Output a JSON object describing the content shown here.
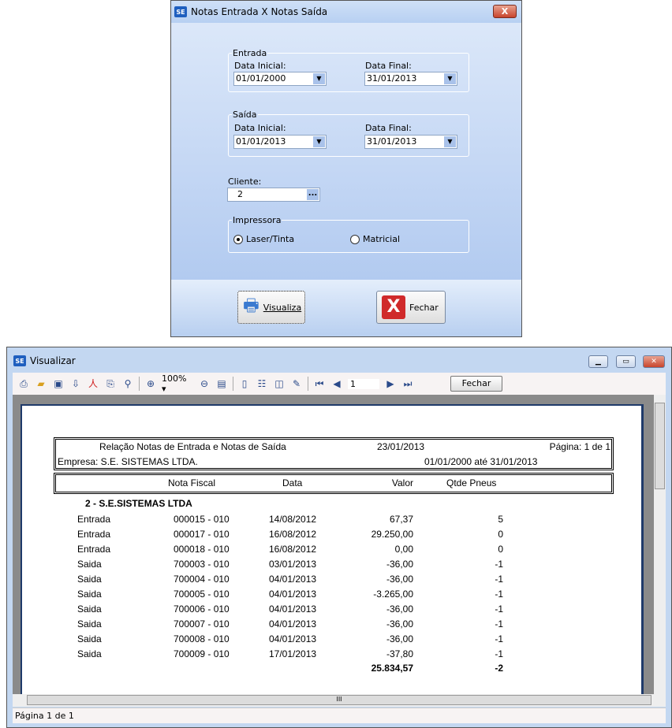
{
  "dialog": {
    "title": "Notas Entrada X Notas Saída",
    "close": "X",
    "entrada": {
      "legend": "Entrada",
      "data_inicial_label": "Data Inicial:",
      "data_inicial": "01/01/2000",
      "data_final_label": "Data Final:",
      "data_final": "31/01/2013"
    },
    "saida": {
      "legend": "Saída",
      "data_inicial_label": "Data Inicial:",
      "data_inicial": "01/01/2013",
      "data_final_label": "Data Final:",
      "data_final": "31/01/2013"
    },
    "cliente": {
      "label": "Cliente:",
      "value": "2",
      "lookup": "..."
    },
    "impressora": {
      "legend": "Impressora",
      "options": [
        "Laser/Tinta",
        "Matricial"
      ],
      "selected": "Laser/Tinta"
    },
    "visualiza_label": "Visualiza",
    "fechar_label": "Fechar"
  },
  "viewer": {
    "title": "Visualizar",
    "zoom": "100%",
    "page_input": "1",
    "fechar_label": "Fechar",
    "status": "Página 1 de 1",
    "icons": [
      "print-icon",
      "open-icon",
      "save-icon",
      "export-icon",
      "pdf-icon",
      "attach-icon",
      "find-icon",
      "zoom-in-icon",
      "zoom-out-icon",
      "page-width-icon",
      "single-page-icon",
      "multi-page-icon",
      "book-icon",
      "edit-icon",
      "first-page-icon",
      "prev-page-icon",
      "next-page-icon",
      "last-page-icon"
    ]
  },
  "report": {
    "title": "Relação Notas de Entrada e Notas de Saída",
    "date": "23/01/2013",
    "page": "Página: 1 de 1",
    "empresa": "Empresa: S.E. SISTEMAS LTDA.",
    "period": "01/01/2000 até 31/01/2013",
    "columns": [
      "Nota Fiscal",
      "Data",
      "Valor",
      "Qtde Pneus"
    ],
    "group": "2  - S.E.SISTEMAS LTDA",
    "rows": [
      [
        "Entrada",
        "000015  - 010",
        "14/08/2012",
        "67,37",
        "5"
      ],
      [
        "Entrada",
        "000017  - 010",
        "16/08/2012",
        "29.250,00",
        "0"
      ],
      [
        "Entrada",
        "000018  - 010",
        "16/08/2012",
        "0,00",
        "0"
      ],
      [
        "Saida",
        "700003  - 010",
        "03/01/2013",
        "-36,00",
        "-1"
      ],
      [
        "Saida",
        "700004  - 010",
        "04/01/2013",
        "-36,00",
        "-1"
      ],
      [
        "Saida",
        "700005  - 010",
        "04/01/2013",
        "-3.265,00",
        "-1"
      ],
      [
        "Saida",
        "700006  - 010",
        "04/01/2013",
        "-36,00",
        "-1"
      ],
      [
        "Saida",
        "700007  - 010",
        "04/01/2013",
        "-36,00",
        "-1"
      ],
      [
        "Saida",
        "700008  - 010",
        "04/01/2013",
        "-36,00",
        "-1"
      ],
      [
        "Saida",
        "700009  - 010",
        "17/01/2013",
        "-37,80",
        "-1"
      ]
    ],
    "total_valor": "25.834,57",
    "total_qtde": "-2"
  }
}
